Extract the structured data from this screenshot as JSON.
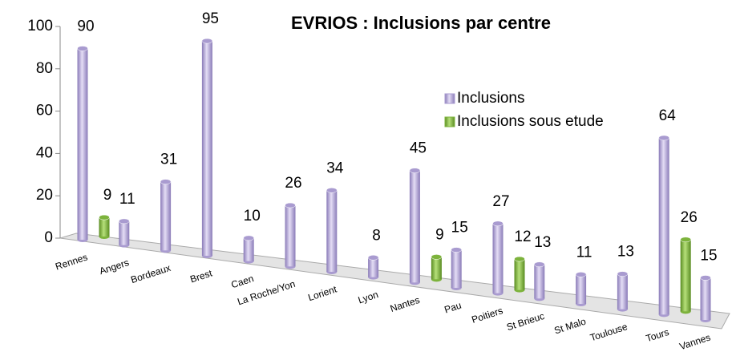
{
  "chart_data": {
    "type": "bar3d",
    "title": "EVRIOS : Inclusions par centre",
    "categories": [
      "Rennes",
      "Angers",
      "Bordeaux",
      "Brest",
      "Caen",
      "La Roche/Yon",
      "Lorient",
      "Lyon",
      "Nantes",
      "Pau",
      "Poitiers",
      "St Brieuc",
      "St Malo",
      "Toulouse",
      "Tours",
      "Vannes"
    ],
    "series": [
      {
        "name": "Inclusions",
        "color": "#a99bd0",
        "values": [
          90,
          11,
          31,
          95,
          10,
          26,
          34,
          8,
          45,
          15,
          27,
          13,
          11,
          13,
          64,
          15
        ]
      },
      {
        "name": "Inclusions sous etude",
        "color": "#7db33c",
        "values": [
          9,
          null,
          null,
          null,
          null,
          null,
          null,
          null,
          9,
          null,
          12,
          null,
          null,
          null,
          26,
          null
        ]
      }
    ],
    "ylim": [
      0,
      100
    ],
    "yticks": [
      0,
      20,
      40,
      60,
      80,
      100
    ],
    "legend": "right"
  }
}
